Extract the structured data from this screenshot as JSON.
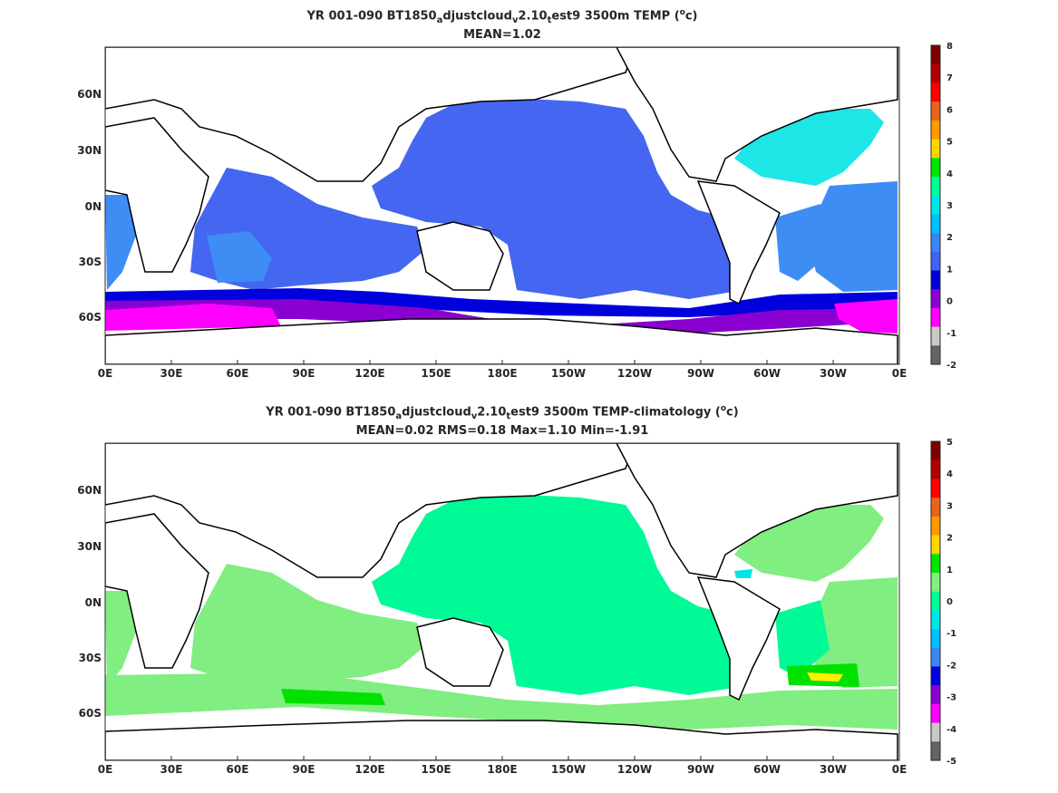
{
  "panels": [
    {
      "title_parts": [
        "YR 001-090 BT1850",
        "a",
        "djustcloud",
        "v",
        "2.10",
        "t",
        "est9 3500m TEMP (",
        "o",
        "c)"
      ],
      "subtitle": "MEAN=1.02",
      "colorbar": {
        "ticks": [
          "8",
          "7",
          "6",
          "5",
          "4",
          "3",
          "2",
          "1",
          "0",
          "-1",
          "-2"
        ],
        "colors": [
          "#7f0000",
          "#b40000",
          "#ff0000",
          "#e8641e",
          "#ff9900",
          "#ffd700",
          "#00e600",
          "#00ff99",
          "#00e6e6",
          "#00bfff",
          "#3d85f5",
          "#3c64f0",
          "#0000dc",
          "#8b00d1",
          "#ff00ff",
          "#c8c8c8",
          "#646464"
        ]
      },
      "field_colors": {
        "main": "#4466f0",
        "light": "#3d8df5",
        "cyan": "#1ee6e6",
        "deep": "#0000dc",
        "purple": "#8a00d0",
        "magenta": "#ff00ff",
        "grey": "#c8c8c8"
      }
    },
    {
      "title_parts": [
        "YR 001-090 BT1850",
        "a",
        "djustcloud",
        "v",
        "2.10",
        "t",
        "est9 3500m TEMP-climatology (",
        "o",
        "c)"
      ],
      "subtitle": "MEAN=0.02   RMS=0.18   Max=1.10   Min=-1.91",
      "colorbar": {
        "ticks": [
          "5",
          "4",
          "3",
          "2",
          "1",
          "0",
          "-1",
          "-2",
          "-3",
          "-4",
          "-5"
        ],
        "colors": [
          "#7f0000",
          "#b40000",
          "#ff0000",
          "#e8641e",
          "#ff9900",
          "#ffd700",
          "#00e600",
          "#80f080",
          "#00ff99",
          "#00e6e6",
          "#00bfff",
          "#3d85f5",
          "#0000dc",
          "#8b00d1",
          "#ff00ff",
          "#c8c8c8",
          "#646464"
        ]
      },
      "field_colors": {
        "main": "#00fa96",
        "light": "#80ee80",
        "green": "#00e100",
        "yellow": "#ffee00",
        "cyan": "#00e6e6"
      }
    }
  ],
  "map": {
    "lon_labels": [
      "0E",
      "30E",
      "60E",
      "90E",
      "120E",
      "150E",
      "180E",
      "150W",
      "120W",
      "90W",
      "60W",
      "30W",
      "0E"
    ],
    "lat_labels": [
      "60N",
      "30N",
      "0N",
      "30S",
      "60S"
    ]
  }
}
